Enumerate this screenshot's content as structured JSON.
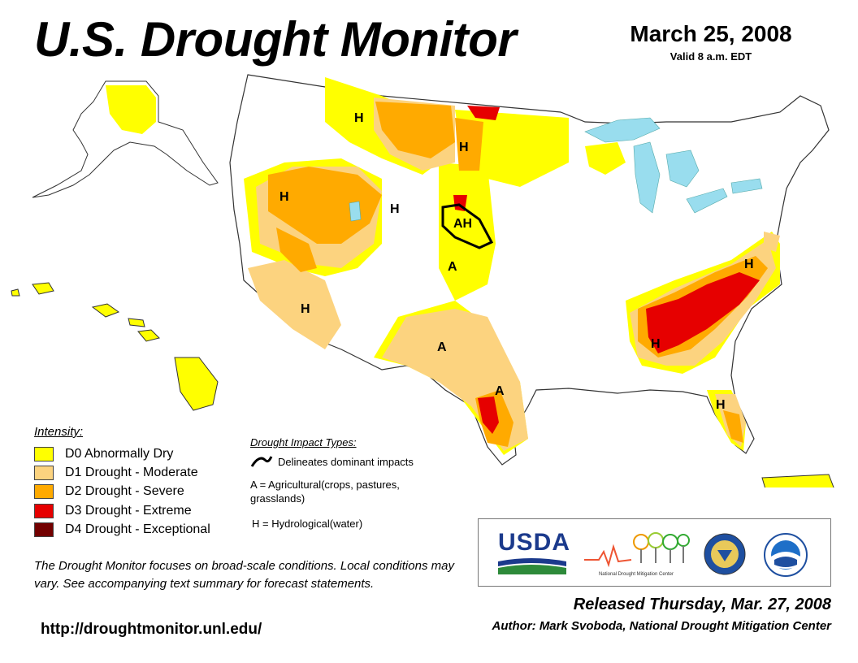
{
  "header": {
    "title": "U.S. Drought Monitor",
    "date": "March 25, 2008",
    "valid": "Valid 8 a.m. EDT"
  },
  "colors": {
    "d0": "#ffff00",
    "d1": "#fcd37f",
    "d2": "#ffaa00",
    "d3": "#e60000",
    "d4": "#730000",
    "water": "#99ddee"
  },
  "legend": {
    "title": "Intensity:",
    "items": [
      {
        "label": "D0 Abnormally Dry",
        "color": "#ffff00"
      },
      {
        "label": "D1 Drought - Moderate",
        "color": "#fcd37f"
      },
      {
        "label": "D2 Drought - Severe",
        "color": "#ffaa00"
      },
      {
        "label": "D3 Drought - Extreme",
        "color": "#e60000"
      },
      {
        "label": "D4 Drought - Exceptional",
        "color": "#730000"
      }
    ]
  },
  "impacts": {
    "title": "Drought Impact Types:",
    "line_label": "Delineates dominant impacts",
    "agricultural": "A = Agricultural(crops, pastures, grasslands)",
    "hydrological": "H = Hydrological(water)"
  },
  "map_labels": {
    "h_montana": "H",
    "h_north_dakota": "H",
    "h_oregon": "H",
    "h_wyoming": "H",
    "ah_nebraska": "AH",
    "a_colorado": "A",
    "h_arizona": "H",
    "a_new_mexico": "A",
    "a_texas": "A",
    "h_virginia": "H",
    "h_tennessee": "H",
    "h_florida": "H"
  },
  "logos": {
    "usda": "USDA",
    "ndmc": "National Drought Mitigation Center"
  },
  "disclaimer": "The Drought Monitor focuses on broad-scale conditions. Local conditions may vary. See accompanying text summary for forecast statements.",
  "url": "http://droughtmonitor.unl.edu/",
  "footer": {
    "released": "Released Thursday, Mar. 27, 2008",
    "author": "Author: Mark Svoboda, National Drought Mitigation Center"
  }
}
